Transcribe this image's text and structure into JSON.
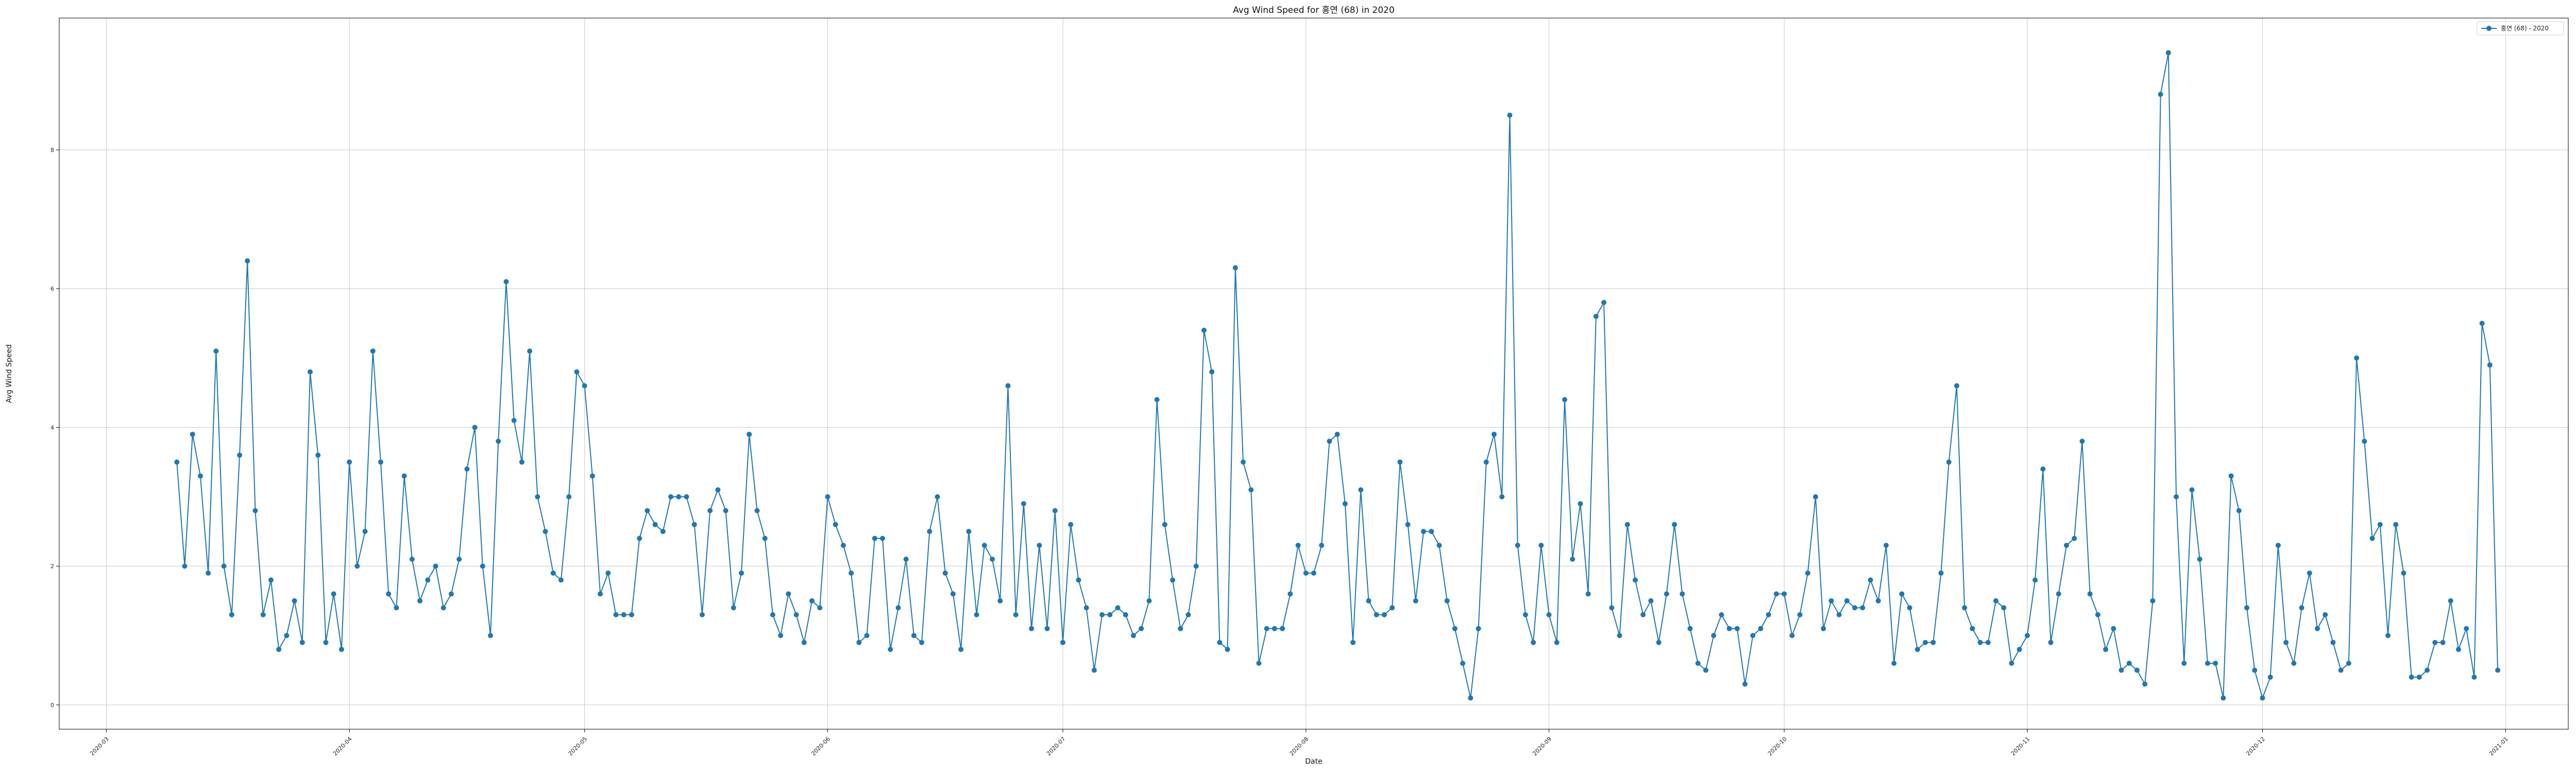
{
  "chart_data": {
    "type": "line",
    "title": "Avg Wind Speed for 홍연 (68) in 2020",
    "xlabel": "Date",
    "ylabel": "Avg Wind Speed",
    "x_range": [
      "2020-02-24",
      "2021-01-09"
    ],
    "ylim": [
      -0.35,
      9.9
    ],
    "x_ticks": [
      "2020-03",
      "2020-04",
      "2020-05",
      "2020-06",
      "2020-07",
      "2020-08",
      "2020-09",
      "2020-10",
      "2020-11",
      "2020-12",
      "2021-01"
    ],
    "y_ticks": [
      0,
      2,
      4,
      6,
      8
    ],
    "grid": true,
    "legend_position": "top-right",
    "color": "#1f77b4",
    "series": [
      {
        "name": "홍연 (68) - 2020",
        "start_date": "2020-03-10",
        "values": [
          3.5,
          2.0,
          3.9,
          3.3,
          1.9,
          5.1,
          2.0,
          1.3,
          3.6,
          6.4,
          2.8,
          1.3,
          1.8,
          0.8,
          1.0,
          1.5,
          0.9,
          4.8,
          3.6,
          0.9,
          1.6,
          0.8,
          3.5,
          2.0,
          2.5,
          5.1,
          3.5,
          1.6,
          1.4,
          3.3,
          2.1,
          1.5,
          1.8,
          2.0,
          1.4,
          1.6,
          2.1,
          3.4,
          4.0,
          2.0,
          1.0,
          3.8,
          6.1,
          4.1,
          3.5,
          5.1,
          3.0,
          2.5,
          1.9,
          1.8,
          3.0,
          4.8,
          4.6,
          3.3,
          1.6,
          1.9,
          1.3,
          1.3,
          1.3,
          2.4,
          2.8,
          2.6,
          2.5,
          3.0,
          3.0,
          3.0,
          2.6,
          1.3,
          2.8,
          3.1,
          2.8,
          1.4,
          1.9,
          3.9,
          2.8,
          2.4,
          1.3,
          1.0,
          1.6,
          1.3,
          0.9,
          1.5,
          1.4,
          3.0,
          2.6,
          2.3,
          1.9,
          0.9,
          1.0,
          2.4,
          2.4,
          0.8,
          1.4,
          2.1,
          1.0,
          0.9,
          2.5,
          3.0,
          1.9,
          1.6,
          0.8,
          2.5,
          1.3,
          2.3,
          2.1,
          1.5,
          4.6,
          1.3,
          2.9,
          1.1,
          2.3,
          1.1,
          2.8,
          0.9,
          2.6,
          1.8,
          1.4,
          0.5,
          1.3,
          1.3,
          1.4,
          1.3,
          1.0,
          1.1,
          1.5,
          4.4,
          2.6,
          1.8,
          1.1,
          1.3,
          2.0,
          5.4,
          4.8,
          0.9,
          0.8,
          6.3,
          3.5,
          3.1,
          0.6,
          1.1,
          1.1,
          1.1,
          1.6,
          2.3,
          1.9,
          1.9,
          2.3,
          3.8,
          3.9,
          2.9,
          0.9,
          3.1,
          1.5,
          1.3,
          1.3,
          1.4,
          3.5,
          2.6,
          1.5,
          2.5,
          2.5,
          2.3,
          1.5,
          1.1,
          0.6,
          0.1,
          1.1,
          3.5,
          3.9,
          3.0,
          8.5,
          2.3,
          1.3,
          0.9,
          2.3,
          1.3,
          0.9,
          4.4,
          2.1,
          2.9,
          1.6,
          5.6,
          5.8,
          1.4,
          1.0,
          2.6,
          1.8,
          1.3,
          1.5,
          0.9,
          1.6,
          2.6,
          1.6,
          1.1,
          0.6,
          0.5,
          1.0,
          1.3,
          1.1,
          1.1,
          0.3,
          1.0,
          1.1,
          1.3,
          1.6,
          1.6,
          1.0,
          1.3,
          1.9,
          3.0,
          1.1,
          1.5,
          1.3,
          1.5,
          1.4,
          1.4,
          1.8,
          1.5,
          2.3,
          0.6,
          1.6,
          1.4,
          0.8,
          0.9,
          0.9,
          1.9,
          3.5,
          4.6,
          1.4,
          1.1,
          0.9,
          0.9,
          1.5,
          1.4,
          0.6,
          0.8,
          1.0,
          1.8,
          3.4,
          0.9,
          1.6,
          2.3,
          2.4,
          3.8,
          1.6,
          1.3,
          0.8,
          1.1,
          0.5,
          0.6,
          0.5,
          0.3,
          1.5,
          8.8,
          9.4,
          3.0,
          0.6,
          3.1,
          2.1,
          0.6,
          0.6,
          0.1,
          3.3,
          2.8,
          1.4,
          0.5,
          0.1,
          0.4,
          2.3,
          0.9,
          0.6,
          1.4,
          1.9,
          1.1,
          1.3,
          0.9,
          0.5,
          0.6,
          5.0,
          3.8,
          2.4,
          2.6,
          1.0,
          2.6,
          1.9,
          0.4,
          0.4,
          0.5,
          0.9,
          0.9,
          1.5,
          0.8,
          1.1,
          0.4,
          5.5,
          4.9,
          0.5
        ]
      }
    ]
  }
}
